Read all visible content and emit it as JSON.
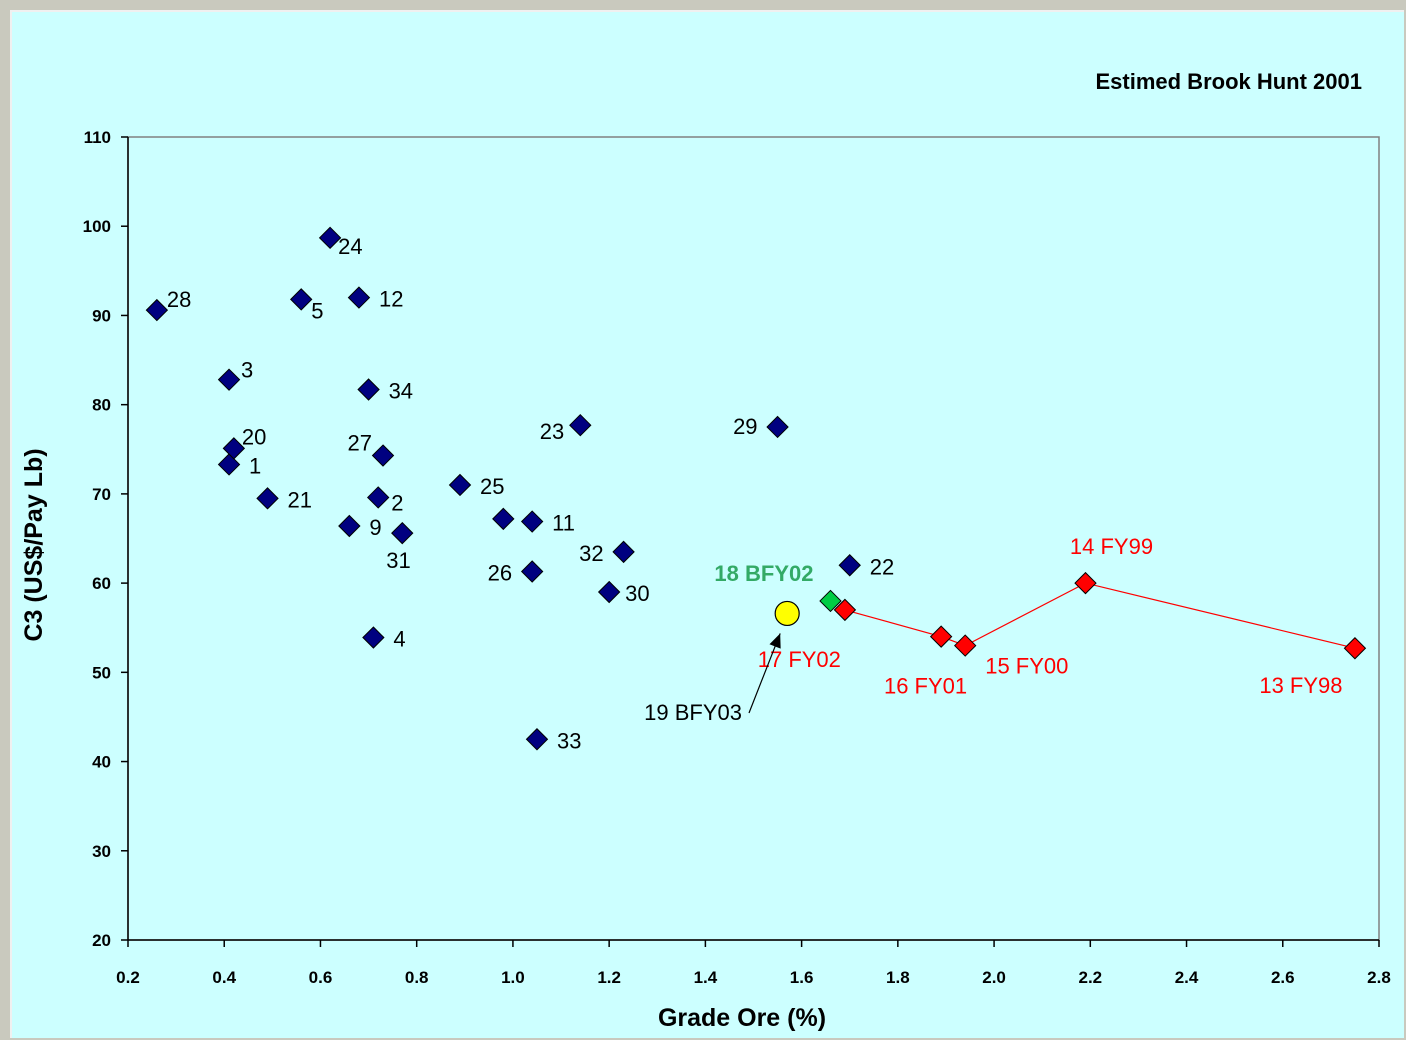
{
  "chart_data": {
    "type": "scatter",
    "annotation": "Estimed Brook Hunt 2001",
    "xlabel": "Grade Ore (%)",
    "ylabel": "C3 (US$/Pay Lb)",
    "xlim": [
      0.2,
      2.8
    ],
    "ylim": [
      20,
      110
    ],
    "x_ticks": [
      "0.2",
      "0.4",
      "0.6",
      "0.8",
      "1.0",
      "1.2",
      "1.4",
      "1.6",
      "1.8",
      "2.0",
      "2.2",
      "2.4",
      "2.6",
      "2.8"
    ],
    "y_ticks": [
      "20",
      "30",
      "40",
      "50",
      "60",
      "70",
      "80",
      "90",
      "100",
      "110"
    ],
    "grid": false,
    "colors": {
      "series": "#000080",
      "highlight": "#ff0000",
      "current": "#00cc44",
      "forecast": "#ffff00",
      "label_red": "#ff0000",
      "label_green": "#33aa66"
    },
    "series": [
      {
        "marker": "diamond",
        "color": "#000080",
        "points": [
          {
            "label": "1",
            "x": 0.41,
            "y": 73.3
          },
          {
            "label": "2",
            "x": 0.72,
            "y": 69.6
          },
          {
            "label": "3",
            "x": 0.41,
            "y": 82.8
          },
          {
            "label": "4",
            "x": 0.71,
            "y": 53.9
          },
          {
            "label": "5",
            "x": 0.56,
            "y": 91.8
          },
          {
            "label": "9",
            "x": 0.66,
            "y": 66.4
          },
          {
            "label": "11",
            "x": 1.04,
            "y": 66.9
          },
          {
            "label": "12",
            "x": 0.68,
            "y": 92.0
          },
          {
            "label": "20",
            "x": 0.42,
            "y": 75.1
          },
          {
            "label": "21",
            "x": 0.49,
            "y": 69.5
          },
          {
            "label": "22",
            "x": 1.7,
            "y": 62.0
          },
          {
            "label": "23",
            "x": 1.14,
            "y": 77.7
          },
          {
            "label": "24",
            "x": 0.62,
            "y": 98.7
          },
          {
            "label": "25",
            "x": 0.89,
            "y": 71.0
          },
          {
            "label": "26",
            "x": 1.04,
            "y": 61.3
          },
          {
            "label": "27",
            "x": 0.73,
            "y": 74.3
          },
          {
            "label": "28",
            "x": 0.26,
            "y": 90.6
          },
          {
            "label": "29",
            "x": 1.55,
            "y": 77.5
          },
          {
            "label": "30",
            "x": 1.2,
            "y": 59.0
          },
          {
            "label": "31",
            "x": 0.77,
            "y": 65.6
          },
          {
            "label": "32",
            "x": 1.23,
            "y": 63.5
          },
          {
            "label": "33",
            "x": 1.05,
            "y": 42.5
          },
          {
            "label": "34",
            "x": 0.7,
            "y": 81.7
          },
          {
            "label": "",
            "x": 0.98,
            "y": 67.2
          }
        ]
      },
      {
        "marker": "diamond",
        "color": "#ff0000",
        "connected": true,
        "points": [
          {
            "label": "17 FY02",
            "x": 1.69,
            "y": 57.0
          },
          {
            "label": "16 FY01",
            "x": 1.89,
            "y": 54.0
          },
          {
            "label": "15 FY00",
            "x": 1.94,
            "y": 53.0
          },
          {
            "label": "14 FY99",
            "x": 2.19,
            "y": 60.0
          },
          {
            "label": "13 FY98",
            "x": 2.75,
            "y": 52.7
          }
        ]
      },
      {
        "marker": "diamond",
        "color": "#00cc44",
        "points": [
          {
            "label": "18 BFY02",
            "x": 1.66,
            "y": 58.0
          }
        ]
      },
      {
        "marker": "circle",
        "color": "#ffff00",
        "points": [
          {
            "label": "19 BFY03",
            "x": 1.57,
            "y": 56.6
          }
        ]
      }
    ]
  }
}
